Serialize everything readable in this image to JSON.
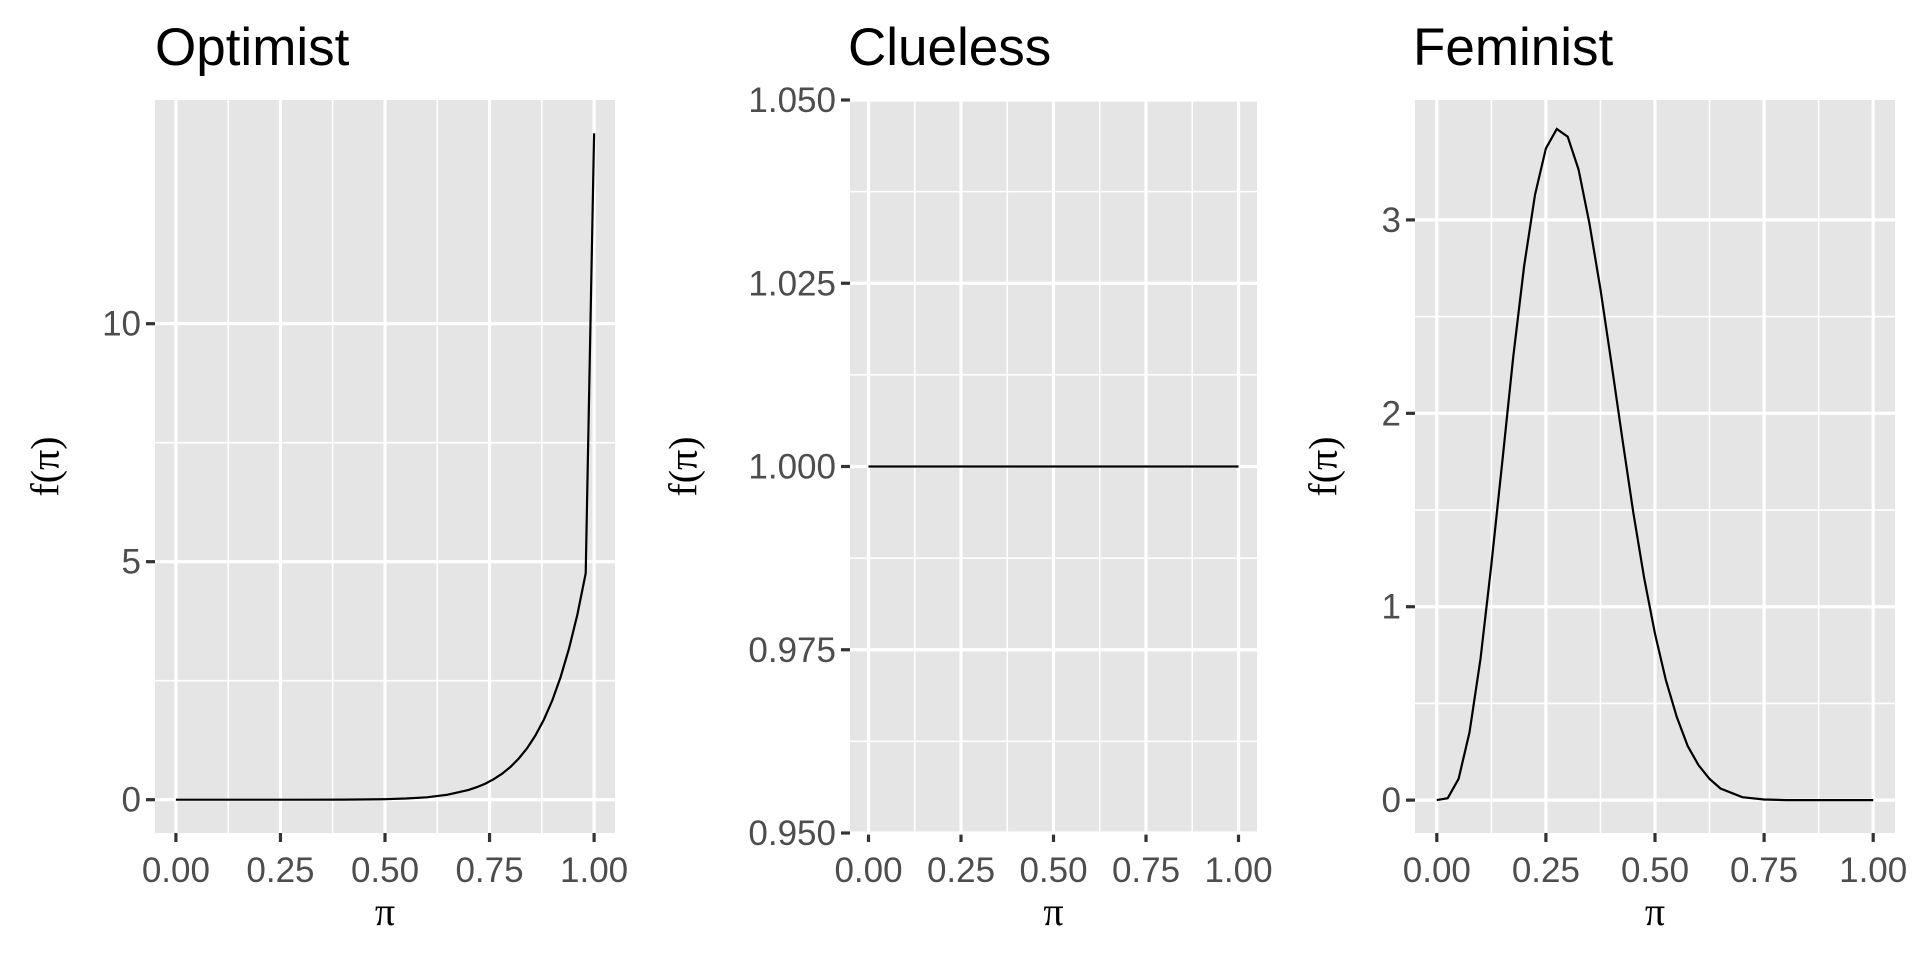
{
  "chart_data": [
    {
      "type": "line",
      "title": "Optimist",
      "xlabel": "π",
      "ylabel": "f(π)",
      "xlim": [
        -0.05,
        1.05
      ],
      "ylim": [
        -0.7,
        14.7
      ],
      "x_ticks": [
        0,
        0.25,
        0.5,
        0.75,
        1
      ],
      "x_tick_labels": [
        "0.00",
        "0.25",
        "0.50",
        "0.75",
        "1.00"
      ],
      "y_ticks": [
        0,
        5,
        10
      ],
      "y_tick_labels": [
        "0",
        "5",
        "10"
      ],
      "series": [
        {
          "x": [
            0,
            0.1,
            0.2,
            0.3,
            0.4,
            0.5,
            0.55,
            0.6,
            0.65,
            0.7,
            0.72,
            0.74,
            0.76,
            0.78,
            0.8,
            0.82,
            0.84,
            0.86,
            0.88,
            0.9,
            0.92,
            0.94,
            0.96,
            0.98,
            1.0
          ],
          "y": [
            0,
            0,
            0,
            0,
            0.001,
            0.011,
            0.024,
            0.051,
            0.105,
            0.205,
            0.264,
            0.338,
            0.43,
            0.546,
            0.688,
            0.866,
            1.084,
            1.353,
            1.683,
            2.086,
            2.576,
            3.174,
            3.891,
            4.755,
            14
          ]
        }
      ],
      "grid": true,
      "background": "#e5e5e5"
    },
    {
      "type": "line",
      "title": "Clueless",
      "xlabel": "π",
      "ylabel": "f(π)",
      "xlim": [
        -0.05,
        1.05
      ],
      "ylim": [
        0.95,
        1.05
      ],
      "x_ticks": [
        0,
        0.25,
        0.5,
        0.75,
        1
      ],
      "x_tick_labels": [
        "0.00",
        "0.25",
        "0.50",
        "0.75",
        "1.00"
      ],
      "y_ticks": [
        0.95,
        0.975,
        1.0,
        1.025,
        1.05
      ],
      "y_tick_labels": [
        "0.950",
        "0.975",
        "1.000",
        "1.025",
        "1.050"
      ],
      "series": [
        {
          "x": [
            0,
            0.25,
            0.5,
            0.75,
            1.0
          ],
          "y": [
            1,
            1,
            1,
            1,
            1
          ]
        }
      ],
      "grid": true,
      "background": "#e5e5e5"
    },
    {
      "type": "line",
      "title": "Feminist",
      "xlabel": "π",
      "ylabel": "f(π)",
      "xlim": [
        -0.05,
        1.05
      ],
      "ylim": [
        -0.17,
        3.62
      ],
      "x_ticks": [
        0,
        0.25,
        0.5,
        0.75,
        1
      ],
      "x_tick_labels": [
        "0.00",
        "0.25",
        "0.50",
        "0.75",
        "1.00"
      ],
      "y_ticks": [
        0,
        1,
        2,
        3
      ],
      "y_tick_labels": [
        "0",
        "1",
        "2",
        "3"
      ],
      "series": [
        {
          "x": [
            0,
            0.025,
            0.05,
            0.075,
            0.1,
            0.125,
            0.15,
            0.175,
            0.2,
            0.225,
            0.25,
            0.275,
            0.3,
            0.325,
            0.35,
            0.375,
            0.4,
            0.425,
            0.45,
            0.475,
            0.5,
            0.525,
            0.55,
            0.575,
            0.6,
            0.625,
            0.65,
            0.7,
            0.75,
            0.8,
            0.85,
            0.9,
            1.0
          ],
          "y": [
            0,
            0.01,
            0.11,
            0.35,
            0.73,
            1.22,
            1.75,
            2.29,
            2.76,
            3.13,
            3.37,
            3.47,
            3.43,
            3.26,
            2.98,
            2.64,
            2.26,
            1.87,
            1.49,
            1.15,
            0.86,
            0.62,
            0.43,
            0.28,
            0.18,
            0.11,
            0.06,
            0.015,
            0.003,
            0,
            0,
            0,
            0
          ]
        }
      ],
      "grid": true,
      "background": "#e5e5e5"
    }
  ]
}
